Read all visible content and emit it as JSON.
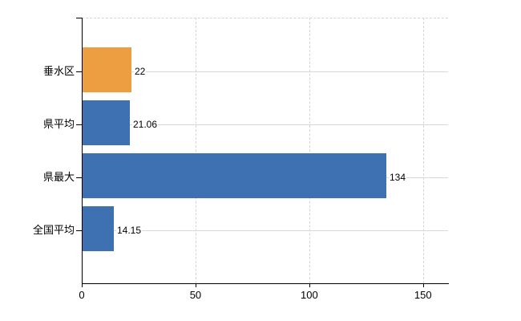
{
  "chart_data": {
    "type": "bar",
    "orientation": "horizontal",
    "title": "",
    "categories": [
      "垂水区",
      "県平均",
      "県最大",
      "全国平均"
    ],
    "values": [
      22,
      21.06,
      134,
      14.15
    ],
    "value_labels": [
      "22",
      "21.06",
      "134",
      "14.15"
    ],
    "bar_colors": [
      "#ED9E40",
      "#3E71B2",
      "#3E71B2",
      "#3E71B2"
    ],
    "highlight_color": "#ED9E40",
    "series_color": "#3E71B2",
    "x_ticks": [
      0,
      50,
      100,
      150
    ],
    "x_tick_labels": [
      "0",
      "50",
      "100",
      "150"
    ],
    "xlim": [
      0,
      161
    ],
    "grid": {
      "vertical_style": "dashed",
      "horizontal_style": "solid",
      "vertical_color": "#D6D2D6",
      "horizontal_color": "#D4DBD4",
      "top_border_style": "dashed",
      "top_border_color": "#D6D2D6"
    },
    "axis_color": "#000000",
    "text_color": "#000000",
    "background": "#FFFFFF",
    "legend": "none"
  }
}
